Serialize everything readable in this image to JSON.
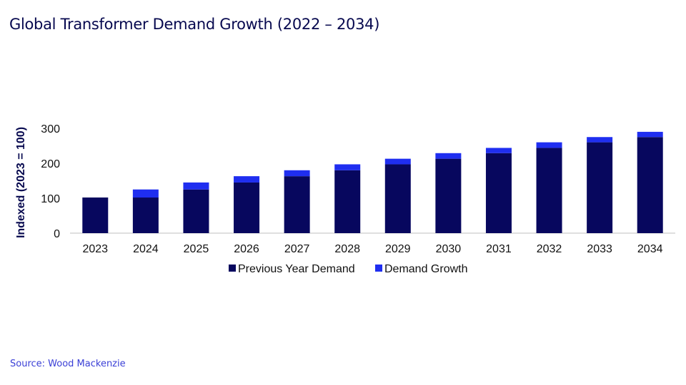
{
  "title": "Global Transformer Demand Growth (2022 – 2034)",
  "source": "Source: Wood Mackenzie",
  "chart_data": {
    "type": "bar",
    "stacked": true,
    "categories": [
      "2023",
      "2024",
      "2025",
      "2026",
      "2027",
      "2028",
      "2029",
      "2030",
      "2031",
      "2032",
      "2033",
      "2034"
    ],
    "series": [
      {
        "name": "Previous Year Demand",
        "color": "#07075e",
        "values": [
          102,
          102,
          125,
          145,
          163,
          180,
          197,
          213,
          229,
          244,
          260,
          275
        ]
      },
      {
        "name": "Demand Growth",
        "color": "#1f2ef0",
        "values": [
          0,
          23,
          20,
          18,
          17,
          17,
          16,
          16,
          15,
          16,
          15,
          15
        ]
      }
    ],
    "ylabel": "Indexed (2023 = 100)",
    "xlabel": "",
    "ylim": [
      0,
      300
    ],
    "yticks": [
      0,
      100,
      200,
      300
    ],
    "legend": "bottom",
    "grid": false
  }
}
